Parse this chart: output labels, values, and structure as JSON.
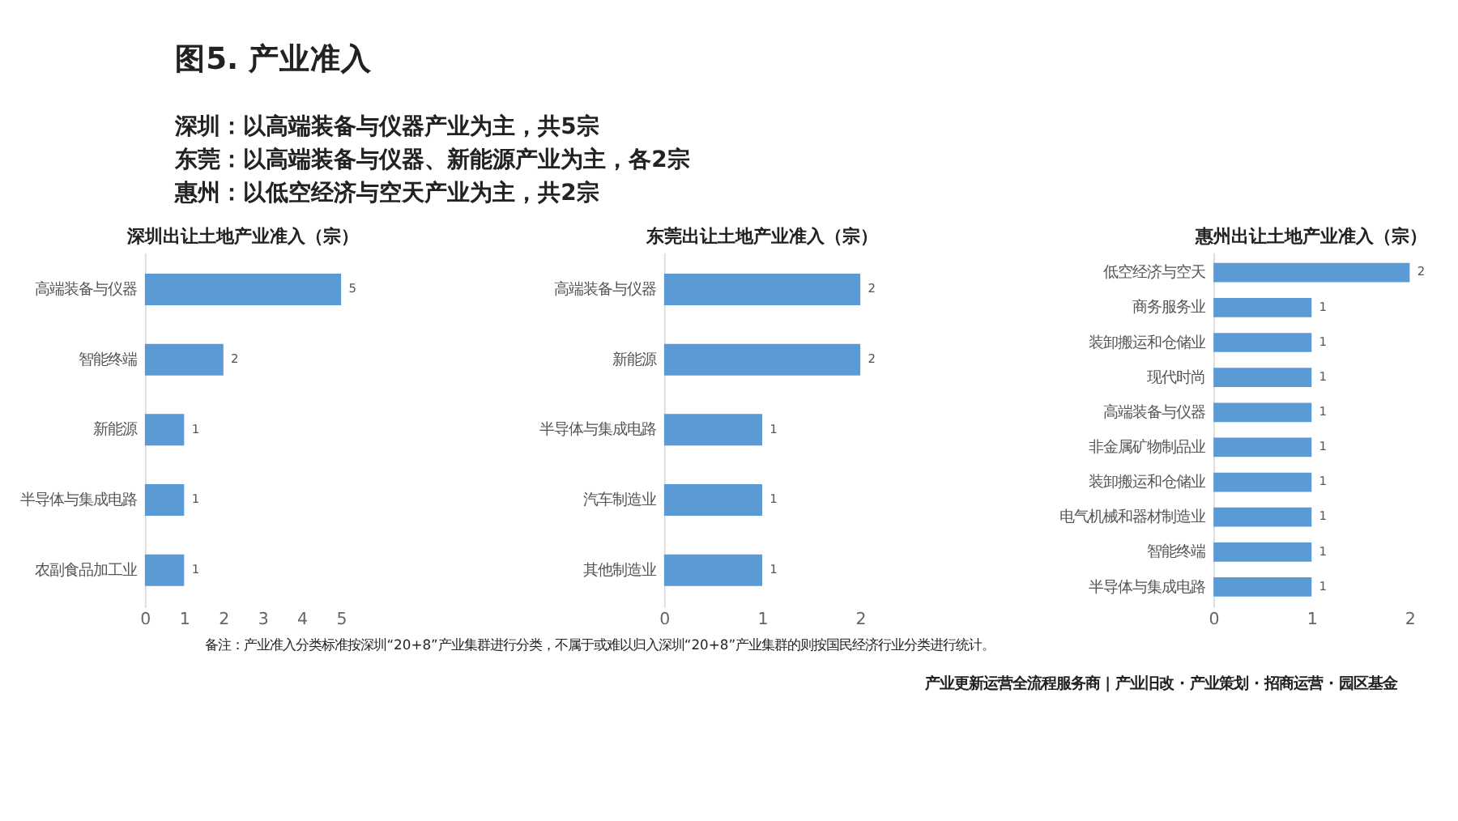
{
  "chart_data": [
    {
      "type": "bar",
      "orientation": "horizontal",
      "title": "深圳出让土地产业准入（宗）",
      "categories": [
        "高端装备与仪器",
        "智能终端",
        "新能源",
        "半导体与集成电路",
        "农副食品加工业"
      ],
      "values": [
        5,
        2,
        1,
        1,
        1
      ],
      "color": "#5b9bd5",
      "xlim": [
        0,
        5
      ],
      "xticks": [
        0,
        1,
        2,
        3,
        4,
        5
      ],
      "data_labels": true,
      "grid": false,
      "annotations": [
        "图5. 产业准入",
        "深圳：以高端装备与仪器产业为主，共5宗",
        "东莞：以高端装备与仪器、新能源产业为主，各2宗",
        "惠州：以低空经济与空天产业为主，共2宗",
        "备注：产业准入分类标准按深圳“20+8”产业集群进行分类，不属于或难以归入深圳“20+8”产业集群的则按国民经济行业分类进行统计。",
        "产业更新运营全流程服务商 | 产业旧改 · 产业策划 · 招商运营 · 园区基金"
      ]
    },
    {
      "type": "bar",
      "orientation": "horizontal",
      "title": "东莞出让土地产业准入（宗）",
      "categories": [
        "高端装备与仪器",
        "新能源",
        "半导体与集成电路",
        "汽车制造业",
        "其他制造业"
      ],
      "values": [
        2,
        2,
        1,
        1,
        1
      ],
      "color": "#5b9bd5",
      "xlim": [
        0,
        2
      ],
      "xticks": [
        0,
        1,
        2
      ],
      "data_labels": true,
      "grid": false
    },
    {
      "type": "bar",
      "orientation": "horizontal",
      "title": "惠州出让土地产业准入（宗）",
      "categories": [
        "低空经济与空天",
        "商务服务业",
        "装卸搬运和仓储业",
        "现代时尚",
        "高端装备与仪器",
        "非金属矿物制品业",
        "装卸搬运和仓储业",
        "电气机械和器材制造业",
        "智能终端",
        "半导体与集成电路"
      ],
      "values": [
        2,
        1,
        1,
        1,
        1,
        1,
        1,
        1,
        1,
        1
      ],
      "color": "#5b9bd5",
      "xlim": [
        0,
        2
      ],
      "xticks": [
        0,
        1,
        2
      ],
      "data_labels": true,
      "grid": false
    }
  ]
}
